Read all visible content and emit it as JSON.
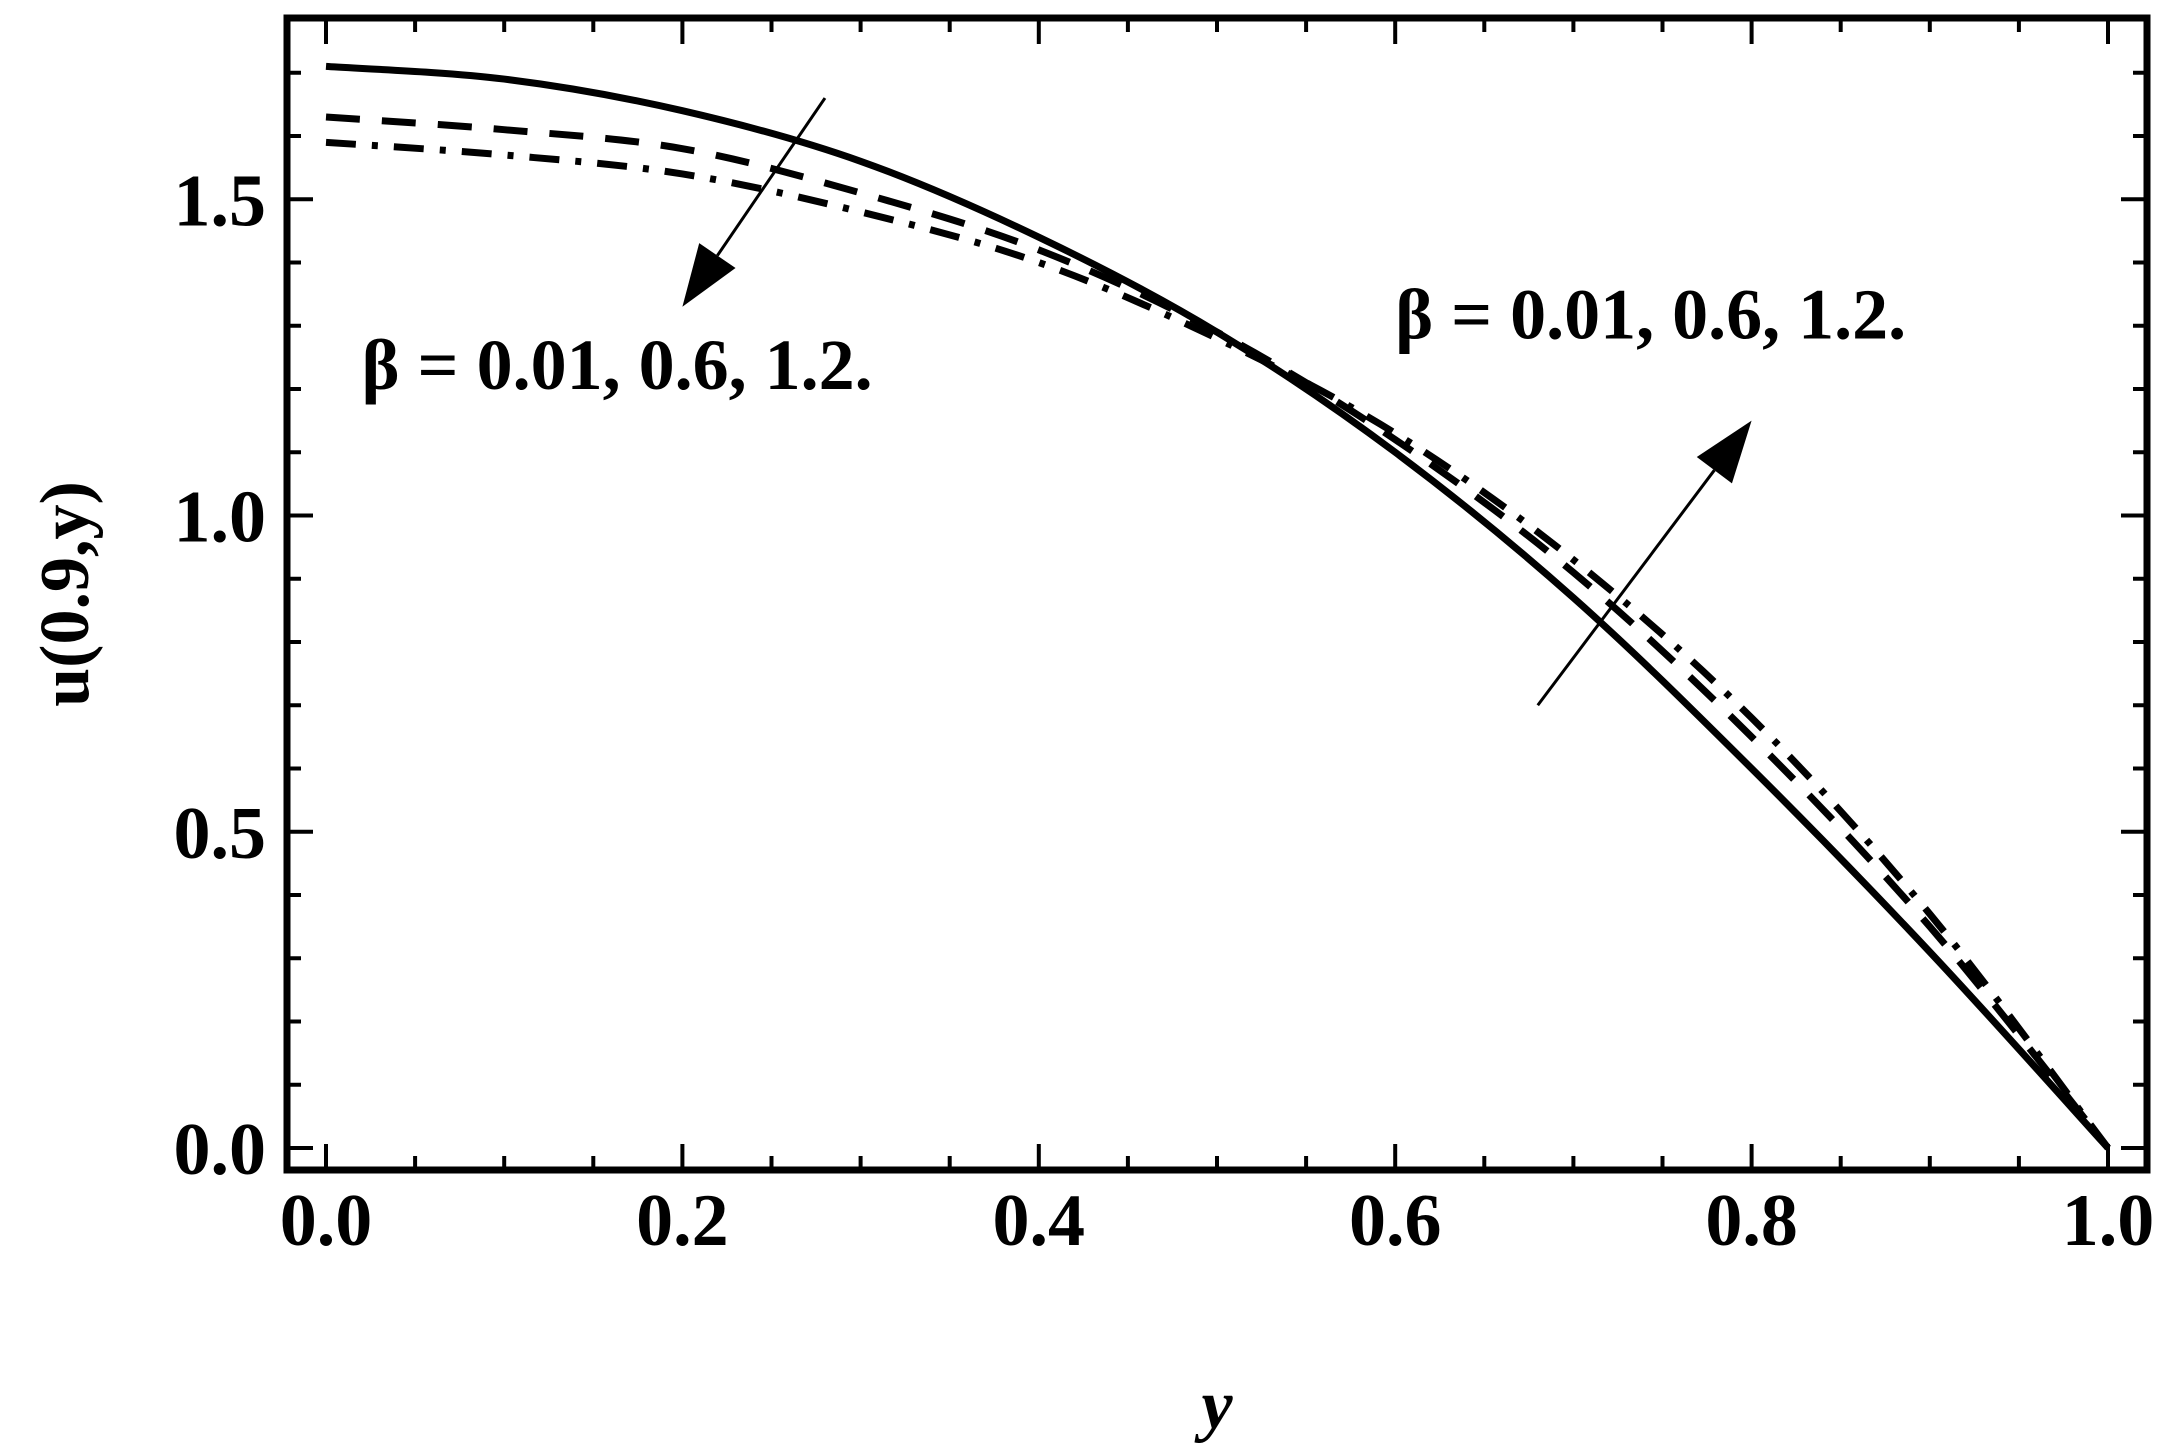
{
  "chart_data": {
    "type": "line",
    "title": "",
    "xlabel": "y",
    "ylabel": "u(0.9,y)",
    "xlim": [
      0,
      1
    ],
    "ylim": [
      0,
      1.72
    ],
    "x_ticks": [
      "0.0",
      "0.2",
      "0.4",
      "0.6",
      "0.8",
      "1.0"
    ],
    "y_ticks": [
      "0.0",
      "0.5",
      "1.0",
      "1.5"
    ],
    "grid": false,
    "legend": "none",
    "series": [
      {
        "style": "solid",
        "x": [
          0.0,
          0.1,
          0.2,
          0.3,
          0.4,
          0.5,
          0.6,
          0.7,
          0.8,
          0.9,
          1.0
        ],
        "y": [
          1.71,
          1.69,
          1.64,
          1.56,
          1.44,
          1.29,
          1.1,
          0.87,
          0.6,
          0.31,
          0.0
        ]
      },
      {
        "style": "dashed",
        "x": [
          0.0,
          0.1,
          0.2,
          0.3,
          0.4,
          0.5,
          0.6,
          0.7,
          0.8,
          0.9,
          1.0
        ],
        "y": [
          1.63,
          1.61,
          1.58,
          1.51,
          1.42,
          1.29,
          1.12,
          0.91,
          0.65,
          0.35,
          0.0
        ]
      },
      {
        "style": "dashdot",
        "x": [
          0.0,
          0.1,
          0.2,
          0.3,
          0.4,
          0.5,
          0.6,
          0.7,
          0.8,
          0.9,
          1.0
        ],
        "y": [
          1.59,
          1.57,
          1.54,
          1.48,
          1.4,
          1.28,
          1.13,
          0.93,
          0.68,
          0.37,
          0.0
        ]
      }
    ],
    "annotations": [
      {
        "name": "beta-annotation-decrease",
        "text": "β = 0.01, 0.6, 1.2.",
        "text_pos": [
          0.02,
          1.2
        ],
        "arrow_from": [
          0.28,
          1.66
        ],
        "arrow_to": [
          0.2,
          1.33
        ]
      },
      {
        "name": "beta-annotation-increase",
        "text": "β = 0.01, 0.6, 1.2.",
        "text_pos": [
          0.6,
          1.28
        ],
        "arrow_from": [
          0.68,
          0.7
        ],
        "arrow_to": [
          0.8,
          1.15
        ]
      }
    ]
  }
}
